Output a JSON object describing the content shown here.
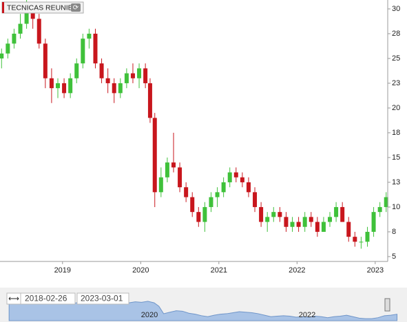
{
  "chart_data": {
    "type": "candlestick",
    "title": "TECNICAS REUNIE",
    "x": [
      2018.22,
      2018.3,
      2018.38,
      2018.46,
      2018.54,
      2018.62,
      2018.7,
      2018.78,
      2018.86,
      2018.94,
      2019.02,
      2019.1,
      2019.18,
      2019.26,
      2019.34,
      2019.42,
      2019.5,
      2019.58,
      2019.66,
      2019.74,
      2019.82,
      2019.9,
      2019.98,
      2020.06,
      2020.12,
      2020.18,
      2020.26,
      2020.34,
      2020.42,
      2020.5,
      2020.58,
      2020.66,
      2020.74,
      2020.82,
      2020.9,
      2020.98,
      2021.06,
      2021.14,
      2021.22,
      2021.3,
      2021.38,
      2021.46,
      2021.54,
      2021.62,
      2021.7,
      2021.78,
      2021.86,
      2021.94,
      2022.02,
      2022.1,
      2022.18,
      2022.26,
      2022.34,
      2022.42,
      2022.5,
      2022.58,
      2022.66,
      2022.74,
      2022.82,
      2022.9,
      2022.98,
      2023.06,
      2023.14
    ],
    "open": [
      25,
      25.5,
      26.5,
      27.5,
      28.5,
      30,
      29,
      26.5,
      23,
      22,
      22.5,
      21.5,
      23,
      24.5,
      27,
      27.5,
      24.5,
      23,
      22.5,
      21.5,
      22.5,
      23.5,
      23,
      24,
      22.5,
      19,
      11.5,
      13,
      14.5,
      14,
      12,
      11,
      9.5,
      8.5,
      10,
      11,
      11.5,
      12.5,
      13.5,
      13,
      12.5,
      11.5,
      10,
      8.5,
      9,
      9.5,
      9,
      8,
      8.5,
      8,
      9,
      8.5,
      7.5,
      8.5,
      9,
      10,
      8.5,
      7,
      6.5,
      6.5,
      7.5,
      9.5,
      10
    ],
    "high": [
      26,
      27,
      28,
      29.5,
      31,
      30.5,
      29.5,
      27,
      24,
      23,
      23,
      23.5,
      25,
      27.5,
      28,
      28,
      25,
      24,
      23,
      23,
      24,
      24.5,
      24.5,
      24.5,
      23,
      19.5,
      14,
      15,
      17.5,
      14.5,
      12.5,
      11.5,
      10,
      10.5,
      11.5,
      12,
      13,
      14,
      14,
      13.5,
      13,
      12,
      10.5,
      9.5,
      10,
      10,
      9.5,
      9,
      9,
      9.5,
      9.5,
      9,
      9,
      9.5,
      10.5,
      10.5,
      9,
      7.5,
      7,
      8,
      10,
      10.5,
      11.5
    ],
    "low": [
      24,
      25,
      26,
      27,
      28,
      28,
      26,
      22,
      20.5,
      21,
      21,
      21,
      22.5,
      24,
      26,
      24,
      22.5,
      21.5,
      20.5,
      21,
      22,
      22.5,
      22,
      22,
      18.5,
      10,
      11,
      12.5,
      13.5,
      11.5,
      10.5,
      9,
      8,
      7.5,
      9.5,
      10,
      11,
      12,
      12.5,
      12,
      11,
      9.5,
      8,
      7.5,
      8.5,
      8.5,
      7.5,
      7.5,
      7.5,
      7.5,
      8,
      7,
      7.5,
      8,
      8.5,
      8.5,
      6.5,
      6,
      5.8,
      6,
      7,
      9,
      9.5
    ],
    "close": [
      25.5,
      26.5,
      27.5,
      28.5,
      30,
      29,
      26.5,
      23,
      22,
      22.5,
      21.5,
      23,
      24.5,
      27,
      27.5,
      24.5,
      23,
      22.5,
      21.5,
      22.5,
      23.5,
      23,
      24,
      22.5,
      19,
      11.5,
      13,
      14.5,
      14,
      12,
      11,
      9.5,
      8.5,
      10,
      11,
      11.5,
      12.5,
      13.5,
      13,
      12.5,
      11.5,
      10,
      8.5,
      9,
      9.5,
      9,
      8,
      8.5,
      8,
      9,
      8.5,
      7.5,
      8.5,
      9,
      10,
      8.5,
      7,
      6.5,
      6.5,
      7.5,
      9.5,
      10,
      11
    ],
    "up_color": "#3fc13a",
    "down_color": "#c8161d",
    "xlim": [
      2018.2,
      2023.16
    ],
    "xticks": [
      2019,
      2020,
      2021,
      2022,
      2023
    ],
    "ylim": [
      4.51,
      30.9
    ],
    "yticks": [
      30,
      {
        "value": 27.5,
        "label": "28"
      },
      25,
      {
        "value": 22.5,
        "label": "23"
      },
      20,
      {
        "value": 17.5,
        "label": "18"
      },
      15,
      {
        "value": 12.5,
        "label": "13"
      },
      10,
      {
        "value": 7.5,
        "label": "8"
      },
      5
    ],
    "grid": false
  },
  "navigator": {
    "start": "2018-02-26",
    "end": "2023-03-01",
    "xticks": [
      2020,
      2022
    ]
  }
}
